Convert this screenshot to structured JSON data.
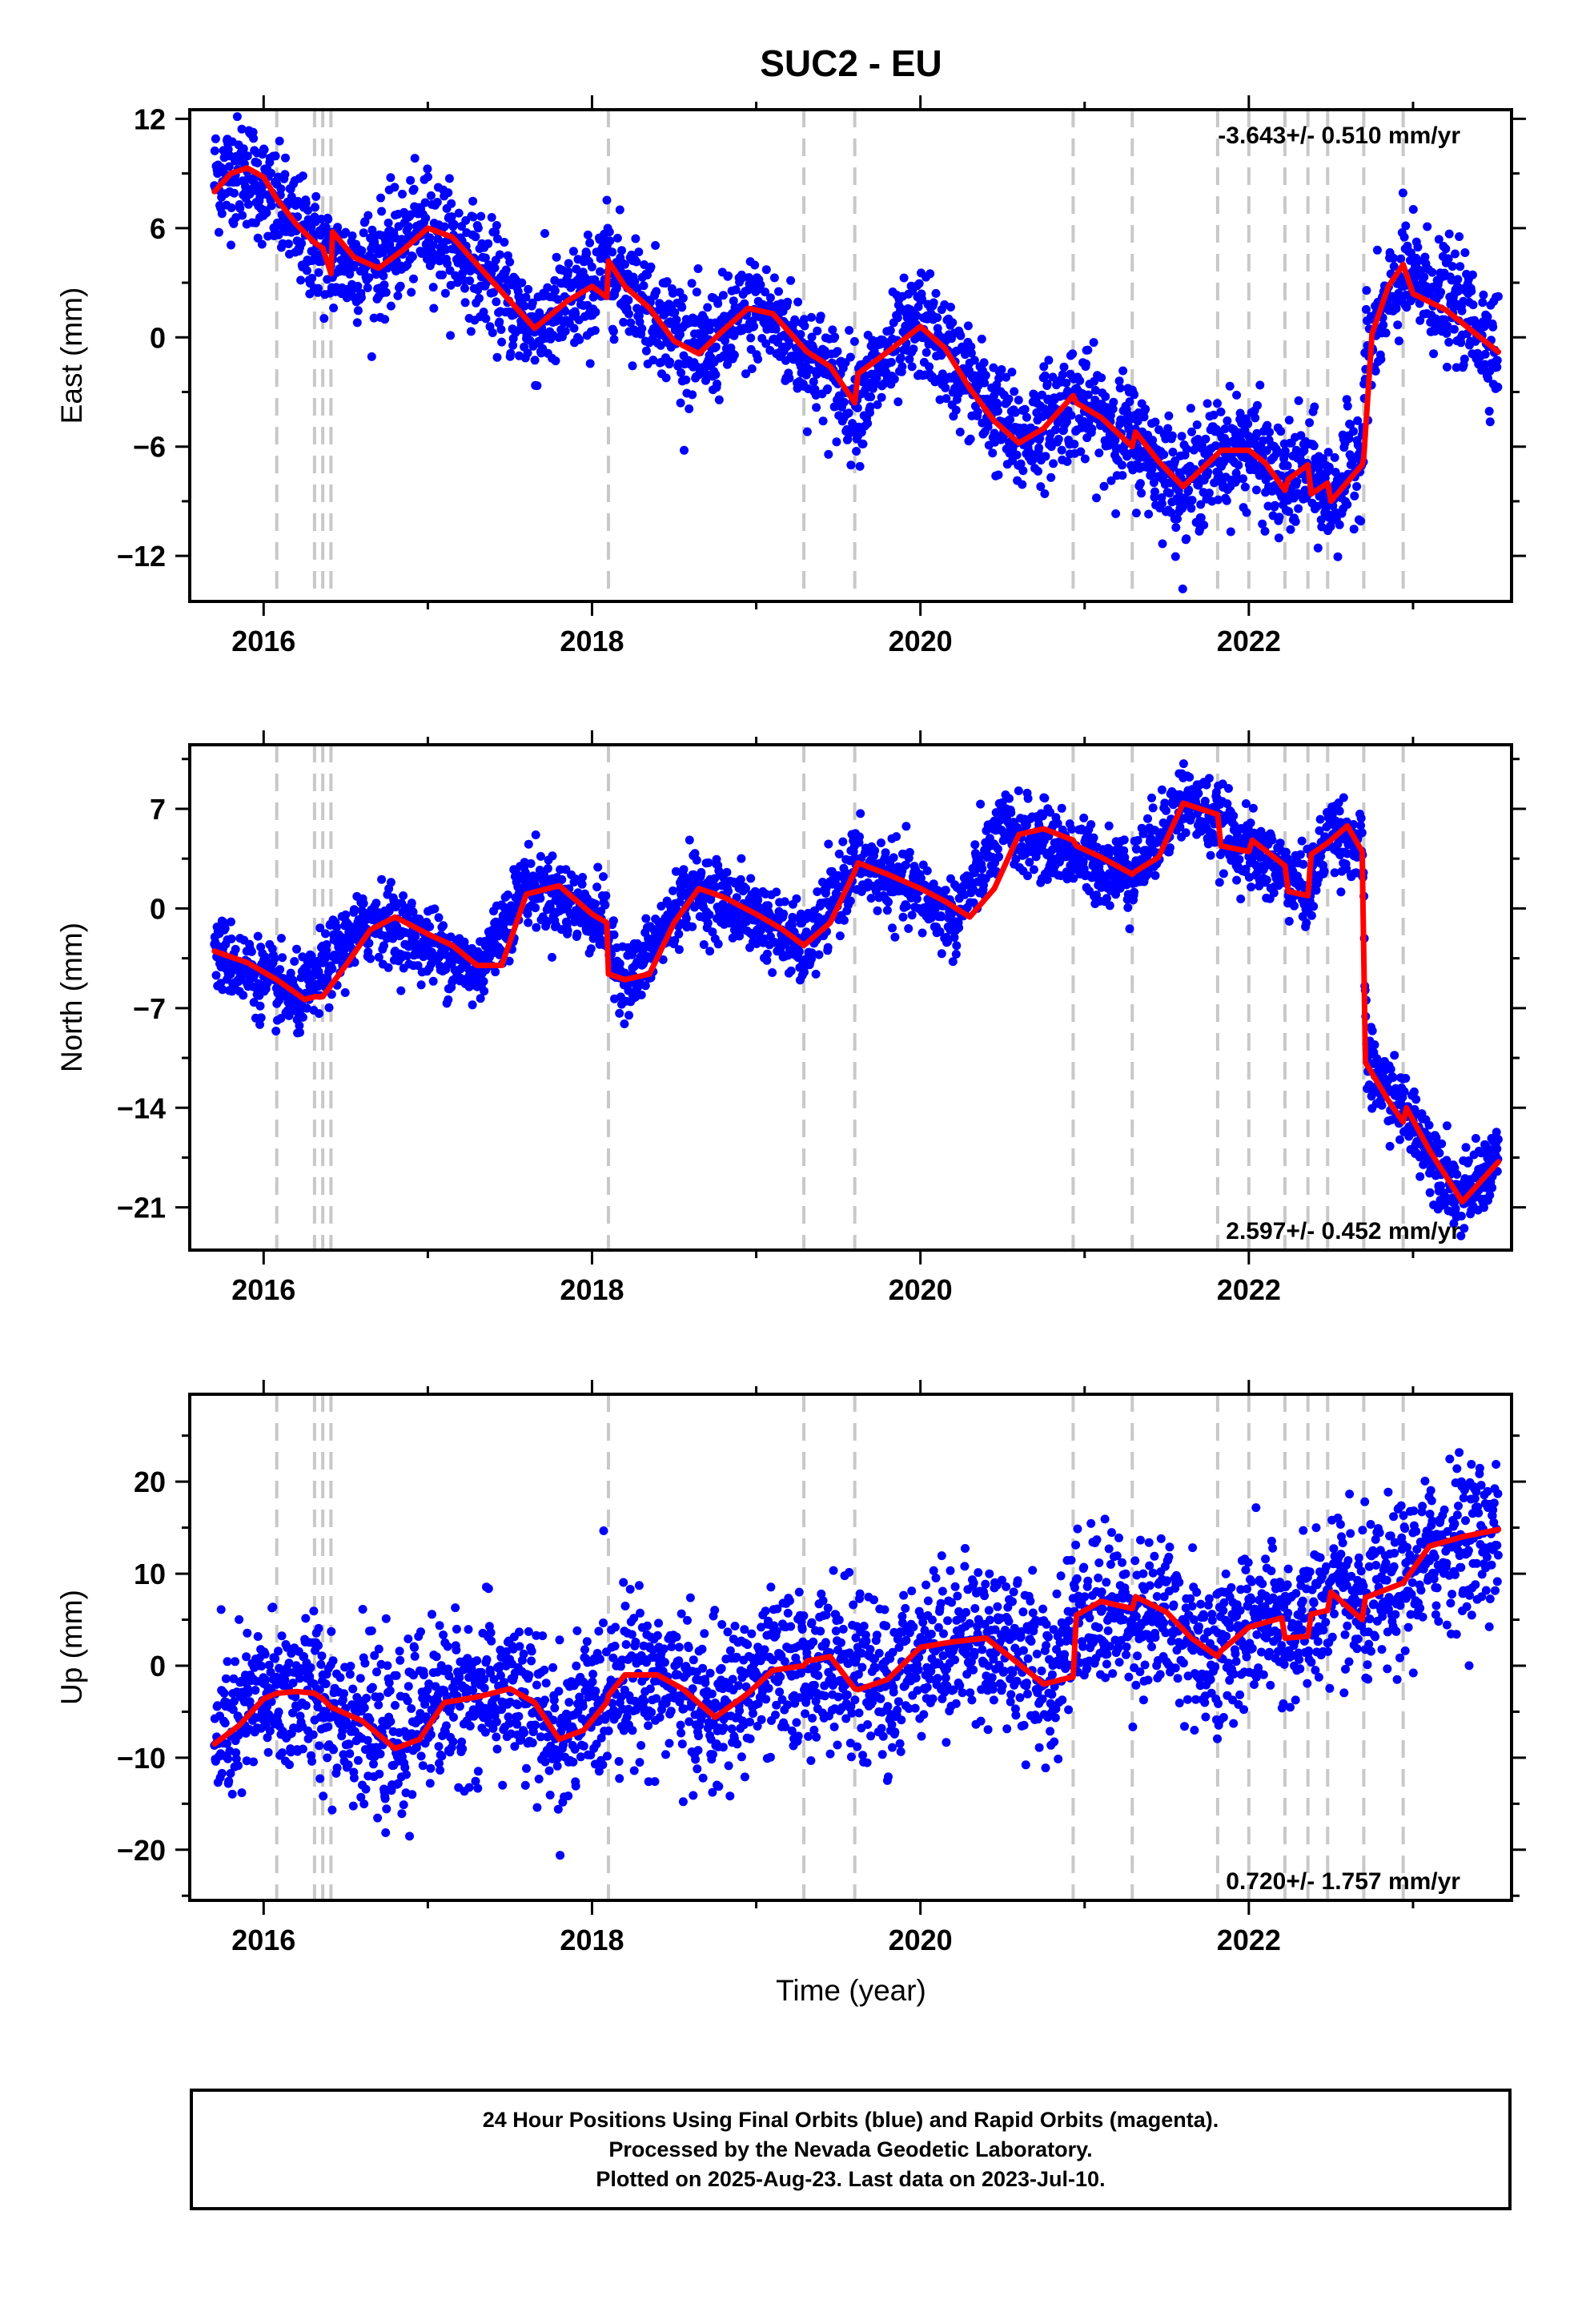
{
  "chart_data": {
    "type": "scatter",
    "title": "SUC2 - EU",
    "xlabel": "Time (year)",
    "x_range": [
      2015.55,
      2023.6
    ],
    "x_ticks": [
      "2016",
      "2018",
      "2020",
      "2022"
    ],
    "grid": false,
    "offset_epochs": [
      2016.08,
      2016.31,
      2016.36,
      2016.41,
      2018.1,
      2019.29,
      2019.6,
      2020.93,
      2021.29,
      2021.81,
      2022.0,
      2022.22,
      2022.36,
      2022.48,
      2022.7,
      2022.94
    ],
    "panels": [
      {
        "name": "east",
        "ylabel": "East (mm)",
        "ylim": [
          -14.5,
          12.5
        ],
        "yticks": [
          "12",
          "6",
          "0",
          "−6",
          "−12"
        ],
        "rate_label": "-3.643+/- 0.510 mm/yr",
        "rate_position": "top-right",
        "series": [
          {
            "name": "daily",
            "color": "#0000ff",
            "anchors_x": [
              2015.7,
              2015.9,
              2016.1,
              2016.25,
              2016.4,
              2016.5,
              2016.7,
              2017.0,
              2017.3,
              2017.65,
              2018.0,
              2018.1,
              2018.35,
              2018.65,
              2019.0,
              2019.3,
              2019.6,
              2020.0,
              2020.3,
              2020.6,
              2020.93,
              2021.1,
              2021.29,
              2021.6,
              2021.8,
              2022.0,
              2022.2,
              2022.36,
              2022.5,
              2022.69,
              2022.71,
              2022.94,
              2023.3,
              2023.52
            ],
            "anchors_y": [
              8.8,
              9.2,
              7.0,
              5.5,
              4.2,
              4.0,
              4.2,
              6.2,
              4.0,
              0.4,
              2.6,
              4.0,
              1.8,
              -1.0,
              1.6,
              -0.8,
              -3.5,
              0.8,
              -2.5,
              -5.8,
              -3.4,
              -4.5,
              -5.5,
              -8.2,
              -6.5,
              -6.0,
              -8.2,
              -7.2,
              -9.0,
              -6.0,
              -1.0,
              3.5,
              1.5,
              -0.6
            ],
            "scatter_sd": 1.5
          },
          {
            "name": "model",
            "color": "#ff0000",
            "x": [
              2015.7,
              2015.8,
              2015.9,
              2016.0,
              2016.08,
              2016.2,
              2016.31,
              2016.36,
              2016.41,
              2016.42,
              2016.55,
              2016.7,
              2016.85,
              2017.0,
              2017.15,
              2017.3,
              2017.5,
              2017.65,
              2017.85,
              2018.0,
              2018.09,
              2018.1,
              2018.2,
              2018.35,
              2018.5,
              2018.65,
              2018.8,
              2018.95,
              2019.1,
              2019.29,
              2019.31,
              2019.45,
              2019.6,
              2019.62,
              2019.8,
              2020.0,
              2020.15,
              2020.3,
              2020.45,
              2020.6,
              2020.75,
              2020.93,
              2020.95,
              2021.1,
              2021.29,
              2021.31,
              2021.45,
              2021.6,
              2021.81,
              2021.83,
              2022.0,
              2022.1,
              2022.22,
              2022.24,
              2022.36,
              2022.38,
              2022.48,
              2022.5,
              2022.69,
              2022.7,
              2022.75,
              2022.85,
              2022.94,
              2023.0,
              2023.2,
              2023.52
            ],
            "y": [
              8.0,
              9.0,
              9.3,
              8.8,
              7.6,
              6.2,
              5.2,
              4.9,
              3.5,
              5.8,
              4.4,
              3.8,
              4.8,
              6.0,
              5.5,
              4.0,
              2.0,
              0.5,
              2.0,
              2.8,
              2.2,
              4.2,
              2.8,
              1.6,
              -0.2,
              -0.9,
              0.4,
              1.6,
              1.3,
              -0.6,
              -0.8,
              -1.6,
              -3.6,
              -2.0,
              -0.8,
              0.6,
              -0.6,
              -2.8,
              -4.6,
              -5.8,
              -5.0,
              -3.2,
              -3.6,
              -4.4,
              -6.0,
              -5.2,
              -6.8,
              -8.2,
              -6.4,
              -6.2,
              -6.2,
              -6.9,
              -8.4,
              -7.8,
              -7.0,
              -8.6,
              -8.0,
              -9.0,
              -7.0,
              -6.6,
              0.2,
              2.8,
              4.0,
              2.4,
              1.5,
              -0.8
            ]
          }
        ]
      },
      {
        "name": "north",
        "ylabel": "North (mm)",
        "ylim": [
          -24.0,
          11.5
        ],
        "yticks": [
          "7",
          "0",
          "−7",
          "−14",
          "−21"
        ],
        "rate_label": "2.597+/- 0.452 mm/yr",
        "rate_position": "bottom-right",
        "series": [
          {
            "name": "daily",
            "color": "#0000ff",
            "anchors_x": [
              2015.7,
              2016.0,
              2016.2,
              2016.3,
              2016.45,
              2016.7,
              2017.0,
              2017.3,
              2017.6,
              2017.9,
              2018.09,
              2018.12,
              2018.25,
              2018.6,
              2019.0,
              2019.3,
              2019.6,
              2020.0,
              2020.2,
              2020.5,
              2020.8,
              2021.1,
              2021.3,
              2021.6,
              2021.8,
              2022.0,
              2022.22,
              2022.36,
              2022.5,
              2022.69,
              2022.72,
              2023.0,
              2023.3,
              2023.52
            ],
            "anchors_y": [
              -3.0,
              -5.0,
              -6.5,
              -5.5,
              -3.0,
              -0.6,
              -2.5,
              -4.5,
              1.8,
              0.2,
              -1.0,
              -4.0,
              -5.0,
              1.5,
              -0.5,
              -3.0,
              3.2,
              1.0,
              -0.8,
              5.5,
              4.5,
              3.0,
              2.5,
              7.8,
              6.0,
              4.0,
              2.5,
              1.0,
              5.8,
              4.0,
              -11.0,
              -15.0,
              -20.5,
              -17.5
            ],
            "scatter_sd": 1.3
          },
          {
            "name": "model",
            "color": "#ff0000",
            "x": [
              2015.7,
              2015.9,
              2016.08,
              2016.25,
              2016.31,
              2016.36,
              2016.41,
              2016.5,
              2016.65,
              2016.8,
              2017.0,
              2017.15,
              2017.3,
              2017.45,
              2017.6,
              2017.8,
              2018.0,
              2018.09,
              2018.1,
              2018.2,
              2018.35,
              2018.5,
              2018.65,
              2018.8,
              2019.0,
              2019.15,
              2019.29,
              2019.31,
              2019.45,
              2019.6,
              2019.62,
              2019.8,
              2020.0,
              2020.15,
              2020.3,
              2020.45,
              2020.6,
              2020.75,
              2020.93,
              2020.95,
              2021.1,
              2021.29,
              2021.31,
              2021.45,
              2021.6,
              2021.81,
              2021.83,
              2022.0,
              2022.02,
              2022.22,
              2022.24,
              2022.36,
              2022.38,
              2022.48,
              2022.6,
              2022.69,
              2022.71,
              2022.85,
              2022.94,
              2022.96,
              2023.1,
              2023.3,
              2023.52
            ],
            "y": [
              -3.0,
              -3.8,
              -5.0,
              -6.4,
              -6.2,
              -6.2,
              -5.4,
              -4.0,
              -1.5,
              -0.6,
              -1.8,
              -2.6,
              -4.0,
              -4.0,
              1.0,
              1.6,
              -0.4,
              -1.0,
              -4.6,
              -5.0,
              -4.6,
              -1.0,
              1.4,
              0.8,
              -0.4,
              -1.4,
              -2.6,
              -2.4,
              -1.0,
              2.6,
              3.2,
              2.4,
              1.4,
              0.5,
              -0.6,
              1.4,
              5.2,
              5.6,
              4.8,
              4.4,
              3.6,
              2.4,
              2.6,
              3.6,
              7.4,
              6.6,
              4.4,
              4.0,
              4.8,
              3.0,
              1.2,
              0.9,
              3.8,
              4.6,
              5.8,
              4.0,
              -10.8,
              -13.5,
              -15.0,
              -14.0,
              -17.0,
              -20.6,
              -17.8
            ]
          }
        ]
      },
      {
        "name": "up",
        "ylabel": "Up (mm)",
        "ylim": [
          -25.5,
          29.5
        ],
        "yticks": [
          "20",
          "10",
          "0",
          "−10",
          "−20"
        ],
        "rate_label": "0.720+/- 1.757 mm/yr",
        "rate_position": "bottom-right",
        "series": [
          {
            "name": "daily",
            "color": "#0000ff",
            "anchors_x": [
              2015.7,
              2016.0,
              2016.3,
              2016.5,
              2016.8,
              2017.0,
              2017.3,
              2017.5,
              2017.8,
              2018.09,
              2018.12,
              2018.4,
              2018.75,
              2019.0,
              2019.3,
              2019.5,
              2019.8,
              2020.0,
              2020.3,
              2020.5,
              2020.8,
              2020.93,
              2021.2,
              2021.5,
              2021.8,
              2022.0,
              2022.3,
              2022.5,
              2022.7,
              2022.94,
              2023.2,
              2023.52
            ],
            "anchors_y": [
              -8.5,
              -3.2,
              -3.0,
              -5.0,
              -9.0,
              -4.0,
              -3.2,
              -2.8,
              -8.0,
              -3.0,
              -1.0,
              -1.0,
              -5.5,
              -1.5,
              -0.2,
              0.0,
              -3.0,
              2.0,
              2.8,
              3.0,
              -2.0,
              6.0,
              6.0,
              5.0,
              1.0,
              4.5,
              4.0,
              7.5,
              6.0,
              9.0,
              13.5,
              14.5
            ],
            "scatter_sd": 4.2
          },
          {
            "name": "model",
            "color": "#ff0000",
            "x": [
              2015.7,
              2015.85,
              2016.0,
              2016.08,
              2016.2,
              2016.31,
              2016.36,
              2016.41,
              2016.6,
              2016.8,
              2016.95,
              2017.1,
              2017.3,
              2017.5,
              2017.65,
              2017.8,
              2017.95,
              2018.09,
              2018.1,
              2018.2,
              2018.4,
              2018.55,
              2018.75,
              2018.95,
              2019.1,
              2019.29,
              2019.31,
              2019.45,
              2019.6,
              2019.62,
              2019.8,
              2020.0,
              2020.2,
              2020.4,
              2020.6,
              2020.75,
              2020.93,
              2020.95,
              2021.1,
              2021.29,
              2021.31,
              2021.5,
              2021.65,
              2021.81,
              2021.83,
              2022.0,
              2022.2,
              2022.22,
              2022.36,
              2022.38,
              2022.48,
              2022.5,
              2022.69,
              2022.71,
              2022.94,
              2023.1,
              2023.3,
              2023.52
            ],
            "y": [
              -8.5,
              -6.5,
              -3.6,
              -3.0,
              -2.8,
              -3.0,
              -3.6,
              -4.5,
              -6.0,
              -9.0,
              -8.0,
              -4.0,
              -3.4,
              -2.5,
              -4.0,
              -8.0,
              -7.0,
              -4.0,
              -3.2,
              -1.0,
              -1.0,
              -2.5,
              -5.6,
              -3.0,
              -0.5,
              0.0,
              0.5,
              1.0,
              -2.5,
              -2.6,
              -1.5,
              2.0,
              2.6,
              3.0,
              0.2,
              -2.0,
              -1.2,
              5.5,
              7.0,
              6.2,
              7.5,
              5.8,
              3.0,
              1.0,
              1.6,
              4.2,
              5.2,
              3.0,
              3.2,
              5.6,
              6.0,
              8.0,
              5.0,
              7.4,
              9.0,
              13.0,
              14.0,
              14.8
            ]
          }
        ]
      }
    ]
  },
  "footer": {
    "line1": "24 Hour Positions Using Final Orbits (blue) and Rapid Orbits (magenta).",
    "line2": "Processed by the Nevada Geodetic Laboratory.",
    "line3": "Plotted on 2025-Aug-23. Last data on 2023-Jul-10."
  }
}
